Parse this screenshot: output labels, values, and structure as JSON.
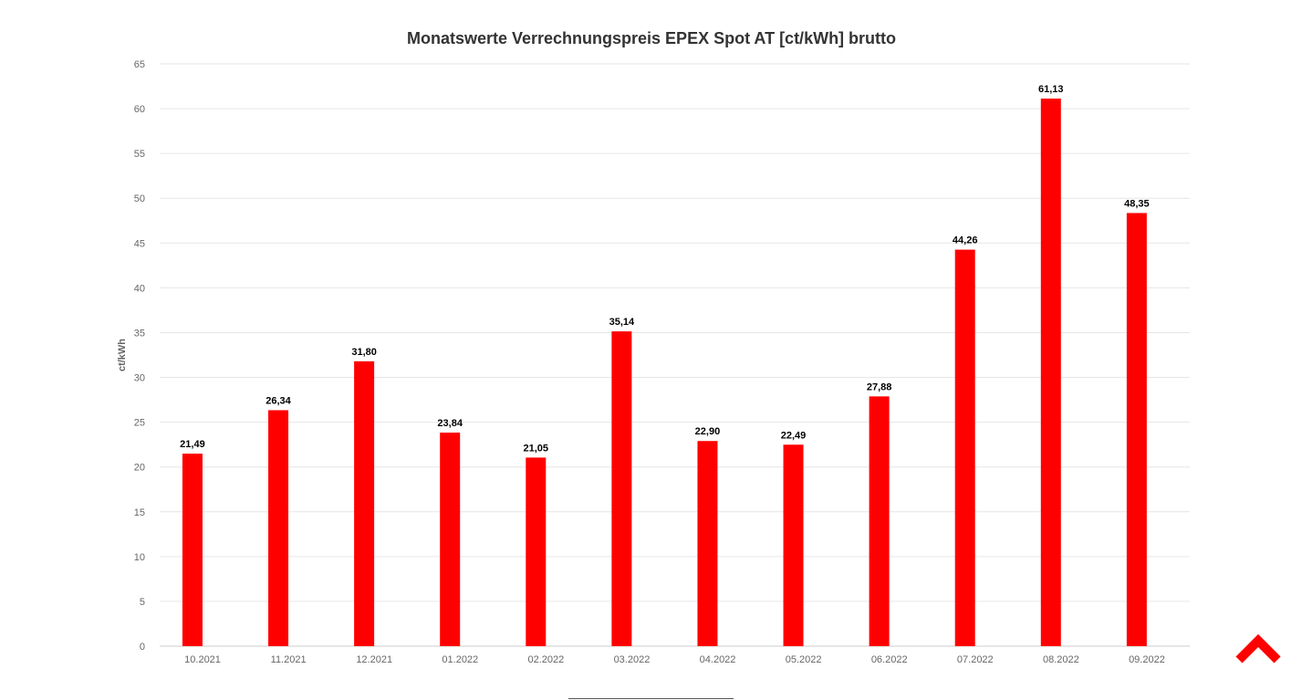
{
  "chart_data": {
    "type": "bar",
    "title": "Monatswerte Verrechnungspreis EPEX Spot AT [ct/kWh] brutto",
    "xlabel": "",
    "ylabel": "ct/kWh",
    "ylim": [
      0,
      65
    ],
    "ytick_step": 5,
    "grid": true,
    "legend": "none",
    "bar_color": "#ff0000",
    "categories": [
      "10.2021",
      "11.2021",
      "12.2021",
      "01.2022",
      "02.2022",
      "03.2022",
      "04.2022",
      "05.2022",
      "06.2022",
      "07.2022",
      "08.2022",
      "09.2022"
    ],
    "series": [
      {
        "values": [
          21.49,
          26.34,
          31.8,
          23.84,
          21.05,
          35.14,
          22.9,
          22.49,
          27.88,
          44.26,
          61.13,
          48.35
        ],
        "labels": [
          "21,49",
          "26,34",
          "31,80",
          "23,84",
          "21,05",
          "35,14",
          "22,90",
          "22,49",
          "27,88",
          "44,26",
          "61,13",
          "48,35"
        ]
      }
    ]
  },
  "scroll_top": {
    "icon": "chevron-up-icon",
    "color": "#ff0000"
  }
}
